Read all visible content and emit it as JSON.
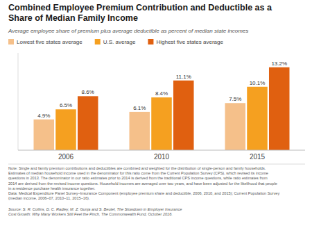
{
  "chart_data": {
    "type": "bar",
    "title": "Combined Employee Premium Contribution and Deductible as a\nShare of Median Family Income",
    "subtitle": "Average employee share of premium plus average deductible as percent of median state incomes",
    "categories": [
      "2006",
      "2010",
      "2015"
    ],
    "series": [
      {
        "name": "Lowest five states average",
        "color": "#F5C08A",
        "values": [
          4.9,
          6.1,
          7.5
        ],
        "value_labels": [
          "4.9%",
          "6.1%",
          "7.5%"
        ]
      },
      {
        "name": "U.S. average",
        "color": "#F5A020",
        "values": [
          6.5,
          8.4,
          10.1
        ],
        "value_labels": [
          "6.5%",
          "8.4%",
          "10.1%"
        ]
      },
      {
        "name": "Highest five states average",
        "color": "#E06010",
        "values": [
          8.6,
          11.1,
          13.2
        ],
        "value_labels": [
          "8.6%",
          "11.1%",
          "13.2%"
        ]
      }
    ],
    "ylim": [
      0,
      15.5
    ],
    "data_labels": true,
    "tick_labels": "x",
    "legend": "top",
    "annotations": [
      "Note: Single and family premium contributions and deductibles are combined and weighted for the distribution of single-person and family households.\nEstimates of median household income used in the denominator for this ratio come from the Current Population Survey (CPS), which revised its income\nquestions in 2013.  The denominator in our ratio estimates prior to 2014 is derived from the traditional CPS income questions, while ratio estimates from\n2014 are derived from the revised income questions. Household incomes are averaged over two years, and have been adjusted for the likelihood that people\nin a residence purchase health insurance together.\nData: Medical Expenditure Panel Survey–Insurance Component (employee premium share and deductible, 2006, 2010, and 2015); Current Population Survey\n(median income, 2006–07, 2010–11, 2015–16).",
      "Source: S. R. Collins, D. C. Radley, M. Z. Gunja and S. Beutel, The Slowdown in Employer Insurance\nCost Growth: Why Many Workers Still Feel the Pinch, The Commonwealth Fund, October 2016."
    ]
  }
}
